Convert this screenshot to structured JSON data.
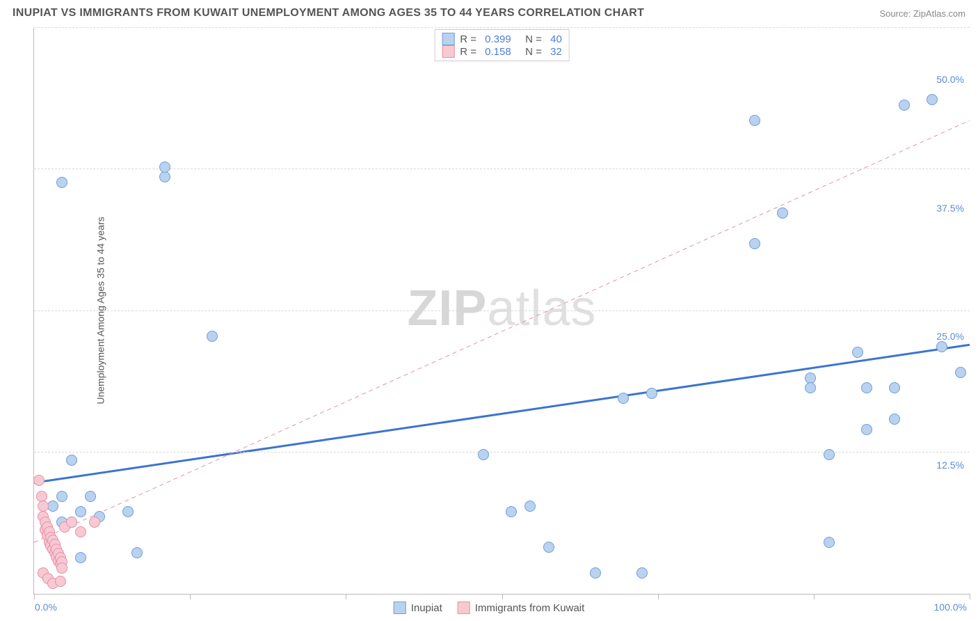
{
  "header": {
    "title": "INUPIAT VS IMMIGRANTS FROM KUWAIT UNEMPLOYMENT AMONG AGES 35 TO 44 YEARS CORRELATION CHART",
    "source_prefix": "Source: ",
    "source_link": "ZipAtlas.com"
  },
  "watermark": {
    "bold": "ZIP",
    "thin": "atlas"
  },
  "chart": {
    "type": "scatter",
    "xlim": [
      0,
      100
    ],
    "ylim": [
      0,
      55
    ],
    "x_ticks": [
      0,
      16.67,
      33.33,
      50,
      66.67,
      83.33,
      100
    ],
    "y_gridlines": [
      13.75,
      27.5,
      41.25,
      55
    ],
    "y_tick_labels": [
      {
        "v": 12.5,
        "label": "12.5%"
      },
      {
        "v": 25,
        "label": "25.0%"
      },
      {
        "v": 37.5,
        "label": "37.5%"
      },
      {
        "v": 50,
        "label": "50.0%"
      }
    ],
    "x_tick_labels": [
      {
        "v": 0,
        "label": "0.0%"
      },
      {
        "v": 100,
        "label": "100.0%"
      }
    ],
    "ylabel": "Unemployment Among Ages 35 to 44 years",
    "background_color": "#ffffff",
    "grid_color": "#d9d9d9",
    "point_radius": 8,
    "point_border_width": 1,
    "series": [
      {
        "name": "Inupiat",
        "fill": "#b9d2ef",
        "stroke": "#6f9dd9",
        "R": "0.399",
        "N": "40",
        "trend": {
          "x1": 0,
          "y1": 10.8,
          "x2": 100,
          "y2": 24.2,
          "stroke": "#3b74d1",
          "width": 3,
          "dash": "none"
        },
        "points": [
          [
            3,
            40
          ],
          [
            14,
            40.5
          ],
          [
            14,
            41.5
          ],
          [
            19,
            25
          ],
          [
            4,
            13
          ],
          [
            3,
            9.5
          ],
          [
            2,
            8.5
          ],
          [
            3,
            7
          ],
          [
            5,
            8
          ],
          [
            6,
            9.5
          ],
          [
            4,
            7
          ],
          [
            7,
            7.5
          ],
          [
            10,
            8
          ],
          [
            2,
            4.5
          ],
          [
            5,
            3.5
          ],
          [
            11,
            4
          ],
          [
            48,
            13.5
          ],
          [
            51,
            8
          ],
          [
            53,
            8.5
          ],
          [
            55,
            4.5
          ],
          [
            60,
            2
          ],
          [
            65,
            2
          ],
          [
            63,
            19
          ],
          [
            66,
            19.5
          ],
          [
            77,
            34
          ],
          [
            80,
            37
          ],
          [
            77,
            46
          ],
          [
            83,
            21
          ],
          [
            83,
            20
          ],
          [
            85,
            13.5
          ],
          [
            85,
            5
          ],
          [
            88,
            23.5
          ],
          [
            89,
            20
          ],
          [
            89,
            16
          ],
          [
            92,
            20
          ],
          [
            92,
            17
          ],
          [
            93,
            47.5
          ],
          [
            96,
            48
          ],
          [
            97,
            24
          ],
          [
            99,
            21.5
          ]
        ]
      },
      {
        "name": "Immigrants from Kuwait",
        "fill": "#f6c9d3",
        "stroke": "#e98fa6",
        "R": "0.158",
        "N": "32",
        "trend": {
          "x1": 0,
          "y1": 5,
          "x2": 100,
          "y2": 46,
          "stroke": "#e98fa6",
          "width": 1,
          "dash": "6,5"
        },
        "points": [
          [
            0.5,
            11
          ],
          [
            0.8,
            9.5
          ],
          [
            1,
            8.5
          ],
          [
            1,
            7.5
          ],
          [
            1.2,
            7
          ],
          [
            1.2,
            6.2
          ],
          [
            1.4,
            6.5
          ],
          [
            1.4,
            5.7
          ],
          [
            1.6,
            6
          ],
          [
            1.6,
            5
          ],
          [
            1.8,
            5.5
          ],
          [
            1.8,
            4.7
          ],
          [
            2,
            5.2
          ],
          [
            2,
            4.3
          ],
          [
            2.2,
            4.8
          ],
          [
            2.2,
            4
          ],
          [
            2.4,
            4.3
          ],
          [
            2.4,
            3.6
          ],
          [
            2.6,
            3.9
          ],
          [
            2.6,
            3.2
          ],
          [
            2.8,
            3.5
          ],
          [
            2.8,
            2.9
          ],
          [
            3,
            3.1
          ],
          [
            3,
            2.5
          ],
          [
            1,
            2
          ],
          [
            1.5,
            1.5
          ],
          [
            2,
            1
          ],
          [
            2.8,
            1.2
          ],
          [
            3.3,
            6.5
          ],
          [
            4,
            7
          ],
          [
            5,
            6
          ],
          [
            6.5,
            7
          ]
        ]
      }
    ],
    "legend_bottom": [
      {
        "label": "Inupiat",
        "fill": "#b9d2ef",
        "stroke": "#6f9dd9"
      },
      {
        "label": "Immigrants from Kuwait",
        "fill": "#f6c9d3",
        "stroke": "#e98fa6"
      }
    ],
    "legend_top_labels": {
      "R": "R =",
      "N": "N ="
    }
  }
}
